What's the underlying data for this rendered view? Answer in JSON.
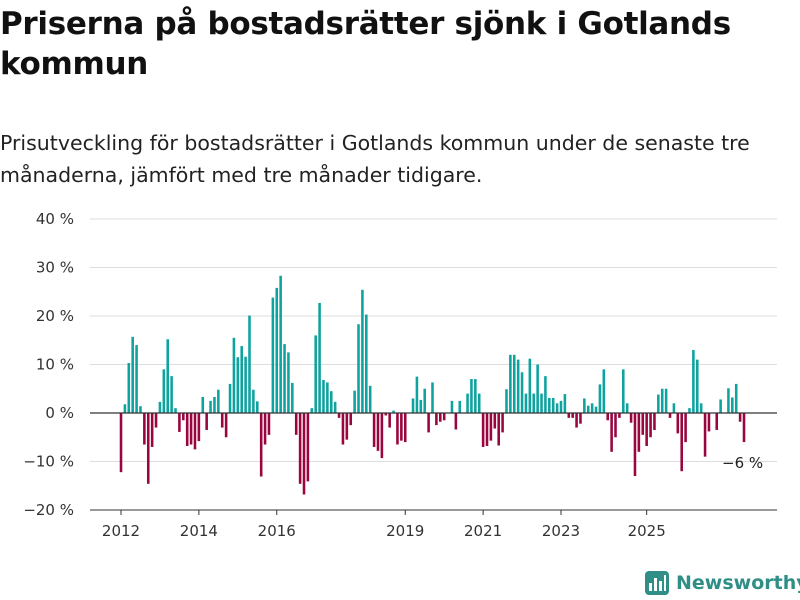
{
  "title": "Priserna på bostadsrätter sjönk i Gotlands kommun",
  "subtitle": "Prisutveckling för bostadsrätter i Gotlands kommun under de senaste tre månaderna, jämfört med tre månader tidigare.",
  "brand": "Newsworthy",
  "colors": {
    "positive": "#0fa3a0",
    "negative": "#99063f",
    "logo": "#2f8f86"
  },
  "chart_data": {
    "type": "bar",
    "x_ticks": [
      "2012",
      "2014",
      "2016",
      "2019",
      "2021",
      "2023",
      "2025"
    ],
    "y_ticks": [
      "40 %",
      "30 %",
      "20 %",
      "10 %",
      "0 %",
      "−10 %",
      "−20 %"
    ],
    "ylim": [
      -20,
      40
    ],
    "grid": true,
    "annotation": {
      "label": "−6 %",
      "target": "last"
    },
    "values": [
      -12.2,
      1.8,
      10.3,
      15.7,
      14.0,
      1.4,
      -6.5,
      -14.6,
      -7.0,
      -3.0,
      2.3,
      9.0,
      15.2,
      7.6,
      1.0,
      -3.9,
      -1.5,
      -6.8,
      -6.5,
      -7.5,
      -5.8,
      3.3,
      -3.5,
      2.5,
      3.3,
      4.8,
      -3.0,
      -5.0,
      6.0,
      15.5,
      11.5,
      13.8,
      11.6,
      20.1,
      4.8,
      2.4,
      -13.1,
      -6.5,
      -4.5,
      23.8,
      25.8,
      28.3,
      14.2,
      12.5,
      6.2,
      -4.5,
      -14.6,
      -16.8,
      -14.1,
      1.0,
      16.0,
      22.7,
      6.8,
      6.3,
      4.5,
      2.3,
      -1.0,
      -6.5,
      -5.5,
      -2.5,
      4.6,
      18.3,
      25.4,
      20.3,
      5.6,
      -7.0,
      -7.8,
      -9.3,
      -0.5,
      -3.0,
      0.5,
      -6.5,
      -5.7,
      -6.0,
      0,
      3.0,
      7.5,
      2.7,
      5.0,
      -4.0,
      6.3,
      -2.5,
      -1.8,
      -1.5,
      0,
      2.5,
      -3.4,
      2.5,
      0,
      4.0,
      7.0,
      7.0,
      4.0,
      -7.0,
      -6.8,
      -5.7,
      -3.2,
      -6.7,
      -4.0,
      4.9,
      12.0,
      12.0,
      11.0,
      8.4,
      4.0,
      11.2,
      4.0,
      10.0,
      4.0,
      7.6,
      3.1,
      3.1,
      2.0,
      2.5,
      3.9,
      -1.0,
      -1.0,
      -3.0,
      -2.2,
      3.0,
      1.5,
      2.0,
      1.3,
      5.9,
      9.0,
      -1.5,
      -8.0,
      -5.0,
      -1.0,
      9.0,
      2.0,
      -2.0,
      -13.0,
      -8.0,
      -4.5,
      -6.8,
      -5.0,
      -3.5,
      3.8,
      5.0,
      5.0,
      -1.0,
      2.0,
      -4.2,
      -12.0,
      -6.0,
      1.0,
      13.0,
      11.0,
      2.0,
      -9.0,
      -3.8,
      0,
      -3.5,
      2.8,
      0,
      5.1,
      3.2,
      6.0,
      -1.8,
      -6.0
    ]
  }
}
